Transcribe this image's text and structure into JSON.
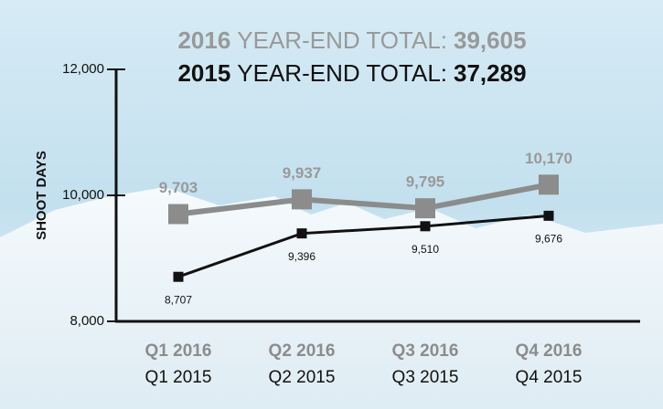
{
  "chart_data": {
    "type": "line",
    "title": [
      {
        "year": "2016",
        "label": "YEAR-END TOTAL:",
        "total": "39,605"
      },
      {
        "year": "2015",
        "label": "YEAR-END TOTAL:",
        "total": "37,289"
      }
    ],
    "y_label": "SHOOT DAYS",
    "categories": [
      [
        "Q1 2016",
        "Q1 2015"
      ],
      [
        "Q2 2016",
        "Q2 2015"
      ],
      [
        "Q3 2016",
        "Q3 2015"
      ],
      [
        "Q4 2016",
        "Q4 2015"
      ]
    ],
    "series": [
      {
        "name": "2016",
        "color": "#8c8c8c",
        "values": [
          9703,
          9937,
          9795,
          10170
        ],
        "value_labels": [
          "9,703",
          "9,937",
          "9,795",
          "10,170"
        ]
      },
      {
        "name": "2015",
        "color": "#111111",
        "values": [
          8707,
          9396,
          9510,
          9676
        ],
        "value_labels": [
          "8,707",
          "9,396",
          "9,510",
          "9,676"
        ]
      }
    ],
    "ylim": [
      8000,
      12000
    ],
    "yticks": [
      {
        "value": 8000,
        "label": "8,000"
      },
      {
        "value": 10000,
        "label": "10,000"
      },
      {
        "value": 12000,
        "label": "12,000"
      }
    ]
  }
}
